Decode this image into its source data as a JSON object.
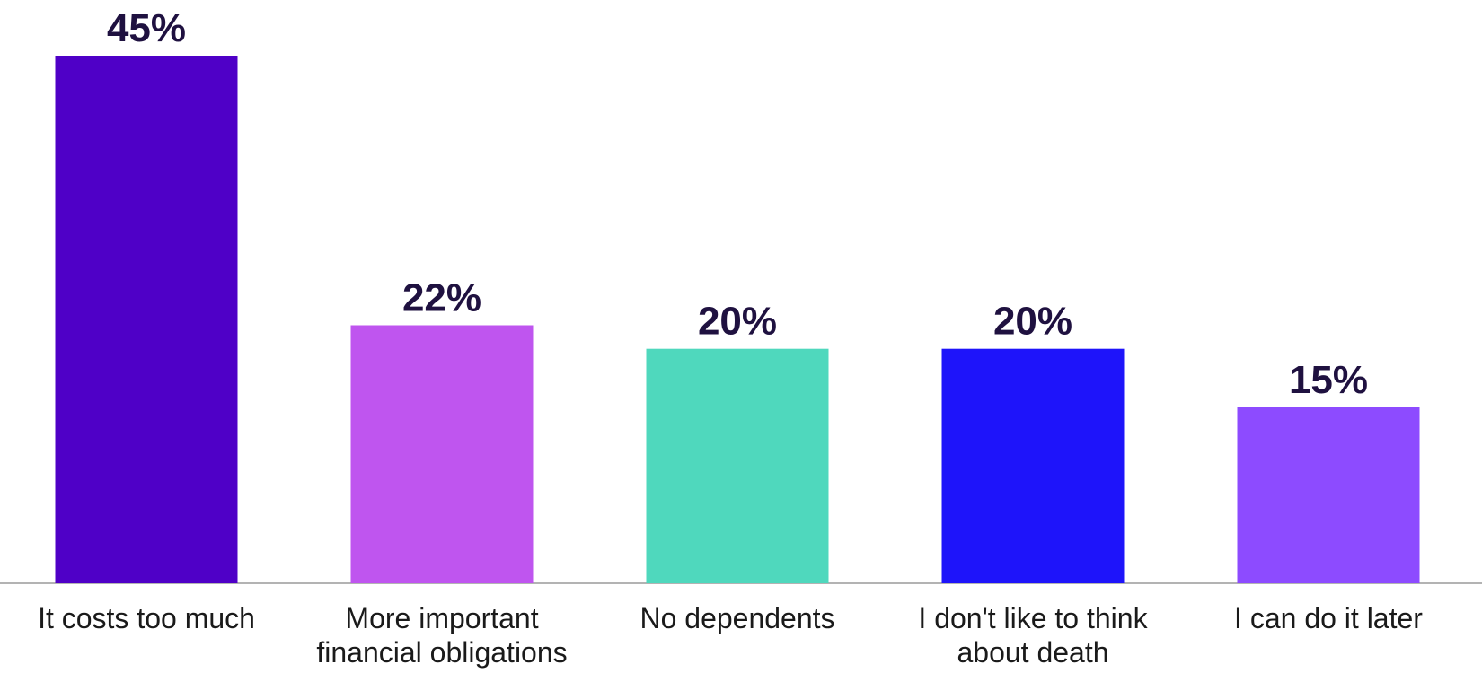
{
  "chart_data": {
    "type": "bar",
    "title": "",
    "xlabel": "",
    "ylabel": "",
    "ylim": [
      0,
      45
    ],
    "grid": false,
    "legend": "none",
    "value_suffix": "%",
    "categories": [
      "It costs too much",
      "More important financial obligations",
      "No dependents",
      "I don't like to think about death",
      "I can do it later"
    ],
    "values": [
      45,
      22,
      20,
      20,
      15
    ],
    "colors": [
      "#4f00c7",
      "#bf55ef",
      "#4fd8bd",
      "#1e14fa",
      "#8d4bff"
    ],
    "data_labels": [
      "45%",
      "22%",
      "20%",
      "20%",
      "15%"
    ]
  }
}
